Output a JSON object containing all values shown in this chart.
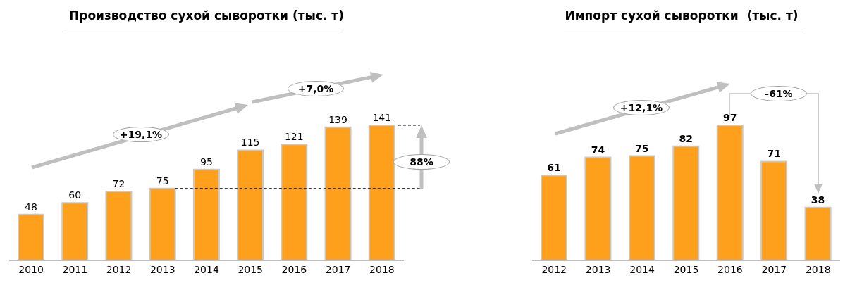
{
  "chart_data": [
    {
      "type": "bar",
      "title": "Производство сухой сыворотки (тыс. т)",
      "categories": [
        "2010",
        "2011",
        "2012",
        "2013",
        "2014",
        "2015",
        "2016",
        "2017",
        "2018"
      ],
      "values": [
        48,
        60,
        72,
        75,
        95,
        115,
        121,
        139,
        141
      ],
      "color": "#ffa01c",
      "data_labels": true,
      "annotations": [
        "+19,1%",
        "+7,0%",
        "88%"
      ],
      "ref_lines": [
        {
          "axis": "y",
          "value": 75,
          "line_style": "dashed",
          "color": "#000000"
        }
      ]
    },
    {
      "type": "bar",
      "title": "Импорт сухой сыворотки  (тыс. т)",
      "categories": [
        "2012",
        "2013",
        "2014",
        "2015",
        "2016",
        "2017",
        "2018"
      ],
      "values": [
        61,
        74,
        75,
        82,
        97,
        71,
        38
      ],
      "color": "#ffa01c",
      "data_labels": true,
      "annotations": [
        "+12,1%",
        "-61%"
      ]
    }
  ]
}
